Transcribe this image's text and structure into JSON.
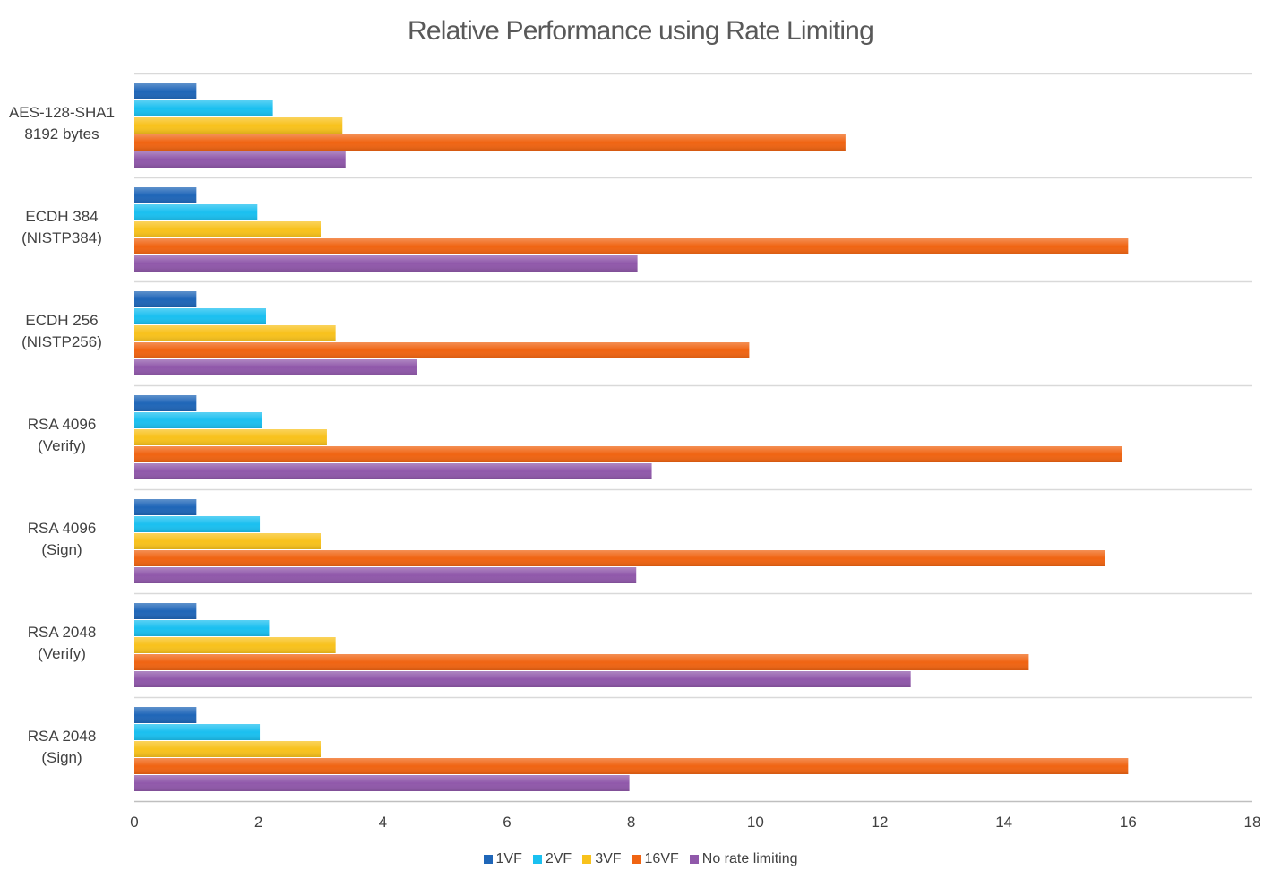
{
  "chart_data": {
    "type": "bar",
    "orientation": "horizontal",
    "title": "Relative Performance using Rate Limiting",
    "categories": [
      [
        "AES-128-SHA1",
        "8192 bytes"
      ],
      [
        "ECDH 384",
        "(NISTP384)"
      ],
      [
        "ECDH 256",
        "(NISTP256)"
      ],
      [
        "RSA 4096",
        "(Verify)"
      ],
      [
        "RSA 4096",
        "(Sign)"
      ],
      [
        "RSA 2048",
        "(Verify)"
      ],
      [
        "RSA 2048",
        "(Sign)"
      ]
    ],
    "series": [
      {
        "name": "1VF",
        "color": "#1f66b8",
        "values": [
          1,
          1,
          1,
          1,
          1,
          1,
          1
        ]
      },
      {
        "name": "2VF",
        "color": "#1ac0f0",
        "values": [
          2.23,
          1.98,
          2.12,
          2.06,
          2.02,
          2.17,
          2.02
        ]
      },
      {
        "name": "3VF",
        "color": "#f8c21c",
        "values": [
          3.35,
          3.0,
          3.24,
          3.1,
          3.0,
          3.24,
          3.0
        ]
      },
      {
        "name": "16VF",
        "color": "#f06412",
        "values": [
          11.45,
          16.0,
          9.9,
          15.9,
          15.63,
          14.4,
          16.0
        ]
      },
      {
        "name": "No rate limiting",
        "color": "#9058aa",
        "values": [
          3.4,
          8.1,
          4.55,
          8.33,
          8.08,
          12.5,
          7.97
        ]
      }
    ],
    "xlim": [
      0,
      18
    ],
    "xticks": [
      "0",
      "2",
      "4",
      "6",
      "8",
      "10",
      "12",
      "14",
      "16",
      "18"
    ],
    "grid": "horizontal-category-separators",
    "legend_position": "bottom"
  }
}
